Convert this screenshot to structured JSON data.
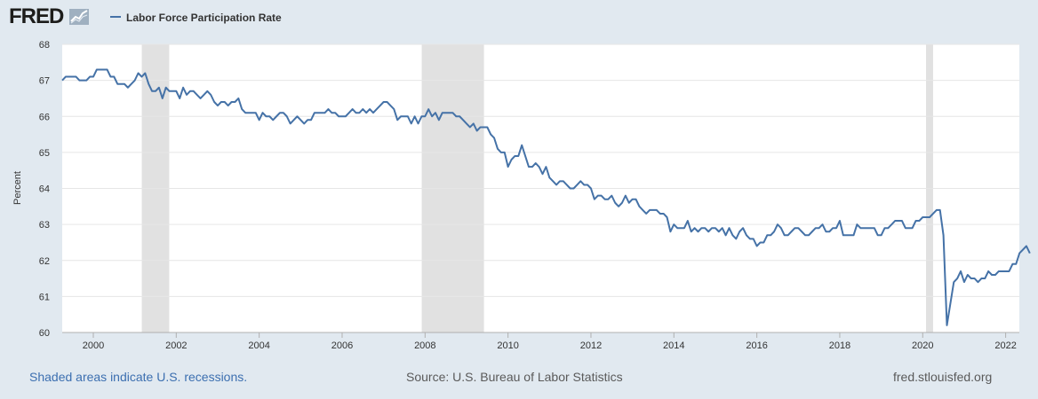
{
  "header": {
    "logo_text": "FRED",
    "legend_label": "Labor Force Participation Rate"
  },
  "footer": {
    "recession_note": "Shaded areas indicate U.S. recessions.",
    "source": "Source: U.S. Bureau of Labor Statistics",
    "site": "fred.stlouisfed.org"
  },
  "colors": {
    "line": "#4572a7",
    "recession": "#e1e1e1",
    "background": "#e1e9f0",
    "plot": "#ffffff"
  },
  "chart_data": {
    "type": "line",
    "title": "",
    "ylabel": "Percent",
    "xlabel": "",
    "ylim": [
      60,
      68
    ],
    "yticks": [
      "60",
      "61",
      "62",
      "63",
      "64",
      "65",
      "66",
      "67",
      "68"
    ],
    "xlim": [
      1999.25,
      2022.33
    ],
    "xticks": [
      "2000",
      "2002",
      "2004",
      "2006",
      "2008",
      "2010",
      "2012",
      "2014",
      "2016",
      "2018",
      "2020",
      "2022"
    ],
    "grid": "horizontal",
    "legend": "top-left",
    "recessions": [
      [
        2001.17,
        2001.83
      ],
      [
        2007.92,
        2009.42
      ],
      [
        2020.08,
        2020.25
      ]
    ],
    "series": [
      {
        "name": "Labor Force Participation Rate",
        "x_start": 1999.25,
        "x_step": 0.0833333,
        "values": [
          67.0,
          67.1,
          67.1,
          67.1,
          67.1,
          67.0,
          67.0,
          67.0,
          67.1,
          67.1,
          67.3,
          67.3,
          67.3,
          67.3,
          67.1,
          67.1,
          66.9,
          66.9,
          66.9,
          66.8,
          66.9,
          67.0,
          67.2,
          67.1,
          67.2,
          66.9,
          66.7,
          66.7,
          66.8,
          66.5,
          66.8,
          66.7,
          66.7,
          66.7,
          66.5,
          66.8,
          66.6,
          66.7,
          66.7,
          66.6,
          66.5,
          66.6,
          66.7,
          66.6,
          66.4,
          66.3,
          66.4,
          66.4,
          66.3,
          66.4,
          66.4,
          66.5,
          66.2,
          66.1,
          66.1,
          66.1,
          66.1,
          65.9,
          66.1,
          66.0,
          66.0,
          65.9,
          66.0,
          66.1,
          66.1,
          66.0,
          65.8,
          65.9,
          66.0,
          65.9,
          65.8,
          65.9,
          65.9,
          66.1,
          66.1,
          66.1,
          66.1,
          66.2,
          66.1,
          66.1,
          66.0,
          66.0,
          66.0,
          66.1,
          66.2,
          66.1,
          66.1,
          66.2,
          66.1,
          66.2,
          66.1,
          66.2,
          66.3,
          66.4,
          66.4,
          66.3,
          66.2,
          65.9,
          66.0,
          66.0,
          66.0,
          65.8,
          66.0,
          65.8,
          66.0,
          66.0,
          66.2,
          66.0,
          66.1,
          65.9,
          66.1,
          66.1,
          66.1,
          66.1,
          66.0,
          66.0,
          65.9,
          65.8,
          65.7,
          65.8,
          65.6,
          65.7,
          65.7,
          65.7,
          65.5,
          65.4,
          65.1,
          65.0,
          65.0,
          64.6,
          64.8,
          64.9,
          64.9,
          65.2,
          64.9,
          64.6,
          64.6,
          64.7,
          64.6,
          64.4,
          64.6,
          64.3,
          64.2,
          64.1,
          64.2,
          64.2,
          64.1,
          64.0,
          64.0,
          64.1,
          64.2,
          64.1,
          64.1,
          64.0,
          63.7,
          63.8,
          63.8,
          63.7,
          63.7,
          63.8,
          63.6,
          63.5,
          63.6,
          63.8,
          63.6,
          63.7,
          63.7,
          63.5,
          63.4,
          63.3,
          63.4,
          63.4,
          63.4,
          63.3,
          63.3,
          63.2,
          62.8,
          63.0,
          62.9,
          62.9,
          62.9,
          63.1,
          62.8,
          62.9,
          62.8,
          62.9,
          62.9,
          62.8,
          62.9,
          62.9,
          62.8,
          62.9,
          62.7,
          62.9,
          62.7,
          62.6,
          62.8,
          62.9,
          62.7,
          62.6,
          62.6,
          62.4,
          62.5,
          62.5,
          62.7,
          62.7,
          62.8,
          63.0,
          62.9,
          62.7,
          62.7,
          62.8,
          62.9,
          62.9,
          62.8,
          62.7,
          62.7,
          62.8,
          62.9,
          62.9,
          63.0,
          62.8,
          62.8,
          62.9,
          62.9,
          63.1,
          62.7,
          62.7,
          62.7,
          62.7,
          63.0,
          62.9,
          62.9,
          62.9,
          62.9,
          62.9,
          62.7,
          62.7,
          62.9,
          62.9,
          63.0,
          63.1,
          63.1,
          63.1,
          62.9,
          62.9,
          62.9,
          63.1,
          63.1,
          63.2,
          63.2,
          63.2,
          63.3,
          63.4,
          63.4,
          62.7,
          60.2,
          60.8,
          61.4,
          61.5,
          61.7,
          61.4,
          61.6,
          61.5,
          61.5,
          61.4,
          61.5,
          61.5,
          61.7,
          61.6,
          61.6,
          61.7,
          61.7,
          61.7,
          61.7,
          61.9,
          61.9,
          62.2,
          62.3,
          62.4,
          62.2
        ]
      }
    ]
  }
}
